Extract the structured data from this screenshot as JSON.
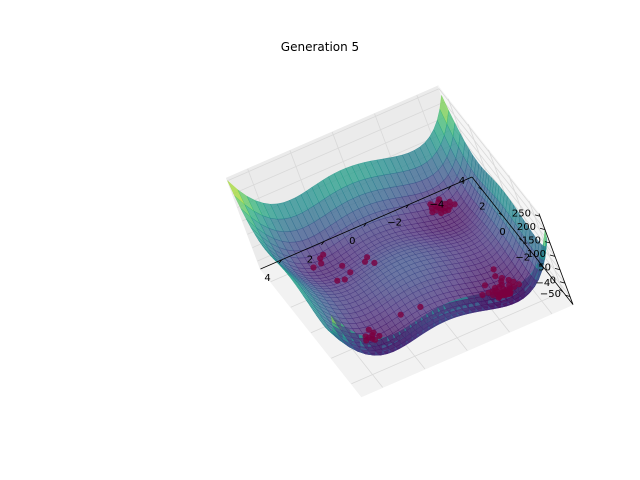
{
  "chart_data": {
    "type": "surface3d",
    "title": "Generation 5",
    "xlabel": "",
    "ylabel": "",
    "zlabel": "",
    "x_ticks": [
      -4,
      -2,
      0,
      2,
      4
    ],
    "x_tick_labels": [
      "−4",
      "−2",
      "0",
      "2",
      "4"
    ],
    "y_ticks": [
      -4,
      -2,
      0,
      2,
      4
    ],
    "y_tick_labels": [
      "−4",
      "−2",
      "0",
      "2",
      "4"
    ],
    "z_ticks": [
      -50,
      0,
      50,
      100,
      150,
      200,
      250
    ],
    "z_tick_labels": [
      "−50",
      "0",
      "50",
      "100",
      "150",
      "200",
      "250"
    ],
    "xlim": [
      -5,
      5
    ],
    "ylim": [
      -5,
      5
    ],
    "zlim": [
      -80,
      260
    ],
    "grid": true,
    "colormap": "viridis",
    "surface_alpha": 0.75,
    "points_color": "#7a0040",
    "points": [
      [
        -2.9,
        -2.9,
        -60
      ],
      [
        -2.8,
        -3.0,
        -62
      ],
      [
        -3.0,
        -2.8,
        -61
      ],
      [
        -2.7,
        -2.9,
        -58
      ],
      [
        -2.9,
        -2.7,
        -59
      ],
      [
        -3.1,
        -3.0,
        -60
      ],
      [
        -2.85,
        -3.15,
        -57
      ],
      [
        -2.6,
        -2.8,
        -55
      ],
      [
        -2.95,
        -2.5,
        -54
      ],
      [
        -2.5,
        -3.0,
        -53
      ],
      [
        -3.2,
        -2.7,
        -55
      ],
      [
        -2.8,
        -2.8,
        -63
      ],
      [
        -3.0,
        -3.2,
        -56
      ],
      [
        -2.7,
        -3.2,
        -52
      ],
      [
        -3.3,
        -3.0,
        -51
      ],
      [
        -2.6,
        -2.6,
        -50
      ],
      [
        -2.4,
        -2.8,
        -47
      ],
      [
        -3.0,
        -2.4,
        -48
      ],
      [
        -3.3,
        -2.5,
        -49
      ],
      [
        -2.5,
        -3.3,
        -46
      ],
      [
        -2.9,
        -3.4,
        -45
      ],
      [
        -2.3,
        -3.1,
        -42
      ],
      [
        -3.1,
        -2.3,
        -44
      ],
      [
        -2.75,
        -2.95,
        -61
      ],
      [
        -2.9,
        -2.85,
        -63
      ],
      [
        -3.05,
        -2.95,
        -60
      ],
      [
        -2.65,
        -3.05,
        -56
      ],
      [
        -3.15,
        -2.85,
        -58
      ],
      [
        -2.55,
        -2.7,
        -54
      ],
      [
        -2.8,
        -2.55,
        -55
      ],
      [
        -3.4,
        -2.8,
        -45
      ],
      [
        -2.2,
        -2.9,
        -40
      ],
      [
        -2.9,
        -2.1,
        -40
      ],
      [
        -3.5,
        -3.2,
        -38
      ],
      [
        -2.4,
        -3.5,
        -37
      ],
      [
        -1.9,
        -3.0,
        -33
      ],
      [
        -3.0,
        -1.8,
        -32
      ],
      [
        -2.3,
        -2.3,
        -44
      ],
      [
        -2.8,
        3.1,
        -30
      ],
      [
        -3.0,
        3.0,
        -31
      ],
      [
        -2.7,
        3.3,
        -28
      ],
      [
        -3.1,
        3.2,
        -29
      ],
      [
        -2.9,
        2.8,
        -30
      ],
      [
        -2.6,
        3.0,
        -27
      ],
      [
        -3.2,
        2.9,
        -28
      ],
      [
        -2.5,
        3.2,
        -25
      ],
      [
        -2.9,
        3.4,
        -26
      ],
      [
        -3.3,
        3.1,
        -24
      ],
      [
        -2.7,
        2.7,
        -26
      ],
      [
        -2.4,
        2.9,
        -22
      ],
      [
        -3.0,
        3.5,
        -23
      ],
      [
        -2.85,
        3.05,
        -31
      ],
      [
        -3.05,
        2.75,
        -29
      ],
      [
        -2.55,
        3.4,
        -21
      ],
      [
        -3.4,
        2.8,
        -22
      ],
      [
        -2.75,
        3.2,
        -29
      ],
      [
        3.1,
        -2.6,
        -30
      ],
      [
        3.2,
        -2.8,
        -31
      ],
      [
        3.0,
        -2.5,
        -29
      ],
      [
        3.3,
        -2.7,
        -28
      ],
      [
        3.15,
        -3.0,
        -27
      ],
      [
        3.4,
        -2.6,
        -25
      ],
      [
        2.9,
        -2.9,
        -26
      ],
      [
        3.5,
        -2.9,
        -22
      ],
      [
        3.1,
        -2.3,
        -24
      ],
      [
        1.6,
        -2.4,
        -15
      ],
      [
        0.7,
        -2.5,
        -12
      ],
      [
        1.1,
        1.2,
        -10
      ],
      [
        1.4,
        1.5,
        -10
      ],
      [
        1.2,
        1.7,
        -9
      ],
      [
        2.2,
        1.3,
        -12
      ],
      [
        2.6,
        1.0,
        -11
      ],
      [
        2.9,
        1.1,
        -10
      ],
      [
        2.3,
        1.9,
        -13
      ],
      [
        2.8,
        3.2,
        -30
      ],
      [
        2.6,
        3.3,
        -28
      ],
      [
        3.3,
        2.8,
        -28
      ],
      [
        2.9,
        2.9,
        -31
      ]
    ]
  }
}
